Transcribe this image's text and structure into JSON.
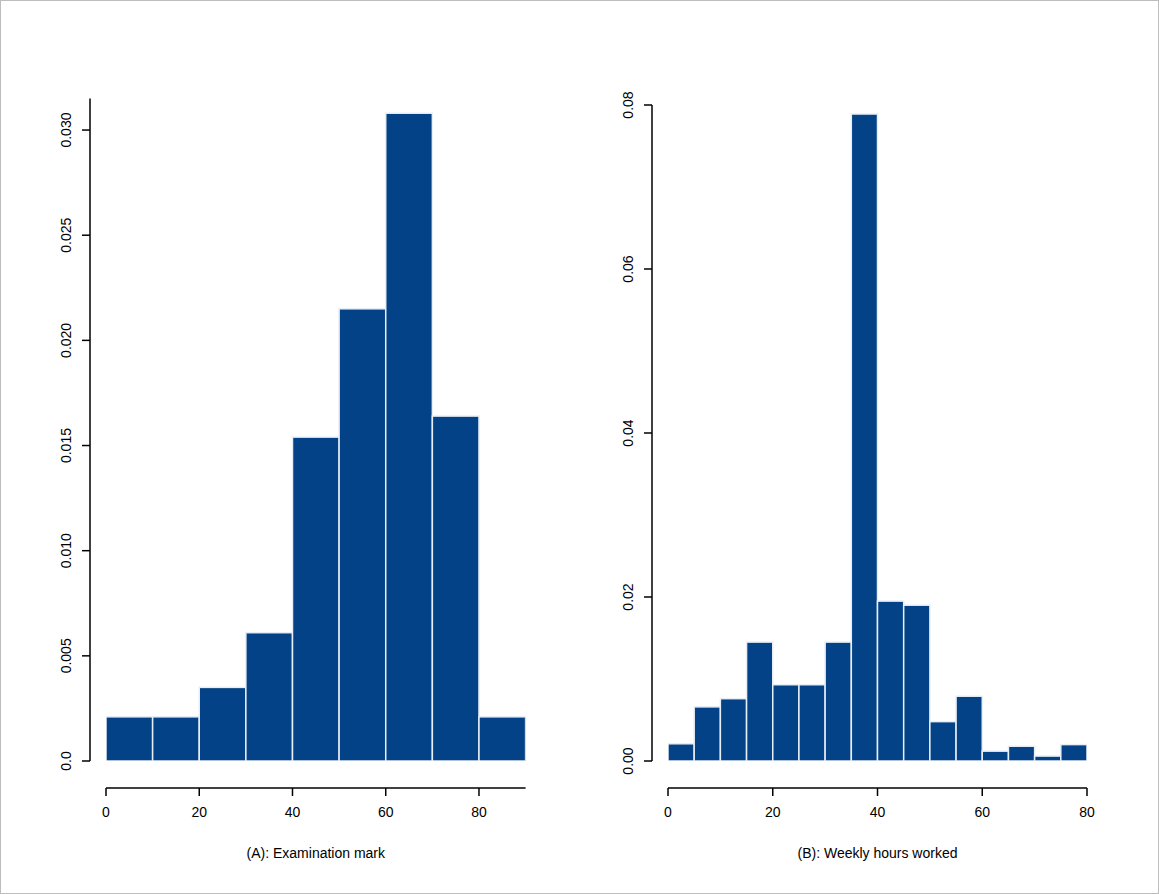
{
  "chart_data": [
    {
      "type": "histogram",
      "xlabel": "(A): Examination mark",
      "color": "#034286",
      "bins": [
        0,
        10,
        20,
        30,
        40,
        50,
        60,
        70,
        80,
        90
      ],
      "values": [
        0.0021,
        0.0021,
        0.0035,
        0.0061,
        0.0154,
        0.0215,
        0.0308,
        0.0164,
        0.0021
      ],
      "xlim": [
        0,
        90
      ],
      "xticks": [
        0,
        20,
        40,
        60,
        80
      ],
      "ylim": [
        0,
        0.0315
      ],
      "yticks": [
        {
          "value": 0,
          "label": "0.0"
        },
        0.005,
        {
          "value": 0.01,
          "label": "0.010"
        },
        0.015,
        {
          "value": 0.02,
          "label": "0.020"
        },
        0.025,
        {
          "value": 0.03,
          "label": "0.030"
        }
      ]
    },
    {
      "type": "histogram",
      "xlabel": "(B): Weekly hours worked",
      "color": "#034286",
      "bins": [
        0,
        5,
        10,
        15,
        20,
        25,
        30,
        35,
        40,
        45,
        50,
        55,
        60,
        65,
        70,
        75,
        80
      ],
      "values": [
        0.0021,
        0.0066,
        0.0076,
        0.0145,
        0.0093,
        0.0093,
        0.0145,
        0.0789,
        0.0195,
        0.019,
        0.0048,
        0.0079,
        0.0012,
        0.0018,
        0.0006,
        0.002
      ],
      "xlim": [
        0,
        80
      ],
      "xticks": [
        0,
        20,
        40,
        60,
        80
      ],
      "ylim": [
        0,
        0.08
      ],
      "yticks": [
        {
          "value": 0,
          "label": "0.00"
        },
        {
          "value": 0.02,
          "label": "0.02"
        },
        {
          "value": 0.04,
          "label": "0.04"
        },
        {
          "value": 0.06,
          "label": "0.06"
        },
        {
          "value": 0.08,
          "label": "0.08"
        }
      ]
    }
  ]
}
